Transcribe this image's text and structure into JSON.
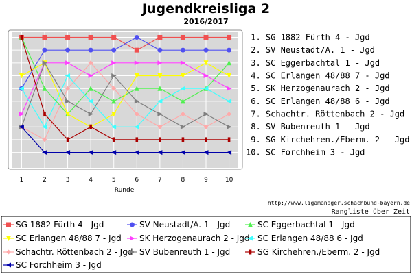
{
  "title": "Jugendkreisliga 2",
  "subtitle": "2016/2017",
  "credit": "http://www.ligamanager.schachbund-bayern.de",
  "note": "Rangliste über Zeit",
  "chart_data": {
    "type": "line",
    "title": "Jugendkreisliga 2",
    "subtitle": "2016/2017",
    "xlabel": "Runde",
    "ylabel": "",
    "x": [
      1,
      2,
      3,
      4,
      5,
      6,
      7,
      8,
      9,
      10
    ],
    "xlim": [
      0.6,
      10.4
    ],
    "ylim": [
      11.2,
      0.6
    ],
    "y_inverted": true,
    "grid": true,
    "legend_position": "bottom",
    "rank_labels": [
      " 1. SG 1882 Fürth 4 - Jgd",
      " 2. SV Neustadt/A. 1 - Jgd",
      " 3. SC Eggerbachtal 1 - Jgd",
      " 4. SC Erlangen 48/88 7 - Jgd",
      " 5. SK Herzogenaurach 2 - Jgd",
      " 6. SC Erlangen 48/88 6 - Jgd",
      " 7. Schachtr. Röttenbach 2 - Jgd",
      " 8. SV Bubenreuth 1 - Jgd",
      " 9. SG Kirchehren./Eberm. 2 - Jgd",
      "10. SC Forchheim 3 - Jgd"
    ],
    "series": [
      {
        "name": "SG 1882 Fürth 4 - Jgd",
        "color": "#f05050",
        "marker": "square",
        "values": [
          1,
          1,
          1,
          1,
          1,
          2,
          1,
          1,
          1,
          1
        ]
      },
      {
        "name": "SV Neustadt/A. 1 - Jgd",
        "color": "#5050f0",
        "marker": "circle",
        "values": [
          5,
          2,
          2,
          2,
          2,
          1,
          2,
          2,
          2,
          2
        ]
      },
      {
        "name": "SC Eggerbachtal 1 - Jgd",
        "color": "#50f050",
        "marker": "triangle-up",
        "values": [
          1,
          5,
          7,
          5,
          6,
          5,
          5,
          6,
          5,
          3
        ]
      },
      {
        "name": "SC Erlangen 48/88 7 - Jgd",
        "color": "#ffff00",
        "marker": "triangle-down",
        "values": [
          4,
          3,
          7,
          8,
          7,
          4,
          4,
          4,
          3,
          4
        ]
      },
      {
        "name": "SK Herzogenaurach 2 - Jgd",
        "color": "#ff40ff",
        "marker": "triangle-right",
        "values": [
          7,
          3,
          3,
          4,
          3,
          3,
          3,
          3,
          4,
          5
        ]
      },
      {
        "name": "SC Erlangen 48/88 6 - Jgd",
        "color": "#40ffff",
        "marker": "triangle-left",
        "values": [
          5,
          8,
          4,
          6,
          8,
          8,
          6,
          5,
          5,
          6
        ]
      },
      {
        "name": "Schachtr. Röttenbach 2 - Jgd",
        "color": "#ffaaaa",
        "marker": "diamond",
        "values": [
          8,
          9,
          5,
          3,
          5,
          7,
          8,
          7,
          8,
          7
        ]
      },
      {
        "name": "SV Bubenreuth 1 - Jgd",
        "color": "#808080",
        "marker": "triangle-right",
        "values": [
          8,
          3,
          6,
          7,
          4,
          6,
          7,
          8,
          7,
          8
        ]
      },
      {
        "name": "SG Kirchehren./Eberm. 2 - Jgd",
        "color": "#aa0000",
        "marker": "bar",
        "values": [
          1,
          7,
          9,
          8,
          9,
          9,
          9,
          9,
          9,
          9
        ]
      },
      {
        "name": "SC Forchheim 3 - Jgd",
        "color": "#0000aa",
        "marker": "triangle-left",
        "values": [
          8,
          10,
          10,
          10,
          10,
          10,
          10,
          10,
          10,
          10
        ]
      }
    ]
  }
}
